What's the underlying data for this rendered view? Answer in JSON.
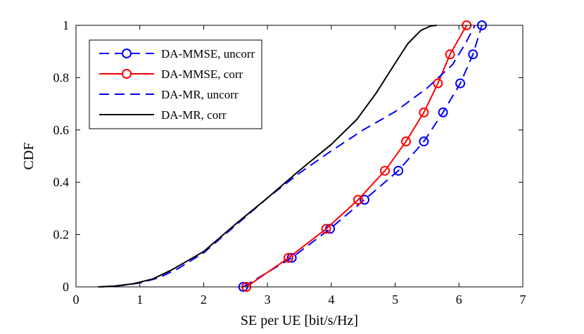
{
  "chart_data": {
    "type": "line",
    "title": "",
    "xlabel": "SE per UE [bit/s/Hz]",
    "ylabel": "CDF",
    "xlim": [
      0,
      7
    ],
    "ylim": [
      0,
      1
    ],
    "xticks": [
      0,
      1,
      2,
      3,
      4,
      5,
      6,
      7
    ],
    "xtick_labels": [
      "0",
      "1",
      "2",
      "3",
      "4",
      "5",
      "6",
      "7"
    ],
    "yticks": [
      0,
      0.2,
      0.4,
      0.6,
      0.8,
      1
    ],
    "ytick_labels": [
      "0",
      "0.2",
      "0.4",
      "0.6",
      "0.8",
      "1"
    ],
    "grid": false,
    "legend_position": "top-left",
    "series": [
      {
        "name": "DA-MMSE, uncorr",
        "color": "#0000ff",
        "line_style": "dashed",
        "marker": "circle",
        "x": [
          2.62,
          3.38,
          3.98,
          4.52,
          5.05,
          5.45,
          5.75,
          6.02,
          6.22,
          6.36
        ],
        "y": [
          0.0,
          0.111,
          0.222,
          0.333,
          0.444,
          0.556,
          0.667,
          0.778,
          0.889,
          1.0
        ]
      },
      {
        "name": "DA-MMSE, corr",
        "color": "#ff0000",
        "line_style": "solid",
        "marker": "circle",
        "x": [
          2.67,
          3.33,
          3.92,
          4.42,
          4.84,
          5.17,
          5.45,
          5.67,
          5.86,
          6.12
        ],
        "y": [
          0.0,
          0.111,
          0.222,
          0.333,
          0.444,
          0.556,
          0.667,
          0.778,
          0.889,
          1.0
        ]
      },
      {
        "name": "DA-MR, uncorr",
        "color": "#0000ff",
        "line_style": "dashed",
        "marker": "none",
        "x": [
          0.4,
          0.7,
          1.0,
          1.3,
          1.6,
          2.0,
          2.5,
          3.0,
          3.5,
          4.0,
          4.5,
          5.0,
          5.5,
          5.9,
          6.1,
          6.25
        ],
        "y": [
          0.0,
          0.005,
          0.015,
          0.035,
          0.07,
          0.13,
          0.235,
          0.34,
          0.435,
          0.52,
          0.6,
          0.67,
          0.76,
          0.85,
          0.93,
          1.0
        ]
      },
      {
        "name": "DA-MR, corr",
        "color": "#000000",
        "line_style": "solid",
        "marker": "none",
        "x": [
          0.35,
          0.6,
          0.9,
          1.2,
          1.5,
          2.0,
          2.5,
          3.0,
          3.5,
          4.0,
          4.4,
          4.7,
          5.0,
          5.2,
          5.4,
          5.55,
          5.65
        ],
        "y": [
          0.0,
          0.003,
          0.012,
          0.03,
          0.065,
          0.135,
          0.24,
          0.34,
          0.445,
          0.545,
          0.64,
          0.74,
          0.855,
          0.93,
          0.98,
          0.997,
          1.0
        ]
      }
    ]
  }
}
